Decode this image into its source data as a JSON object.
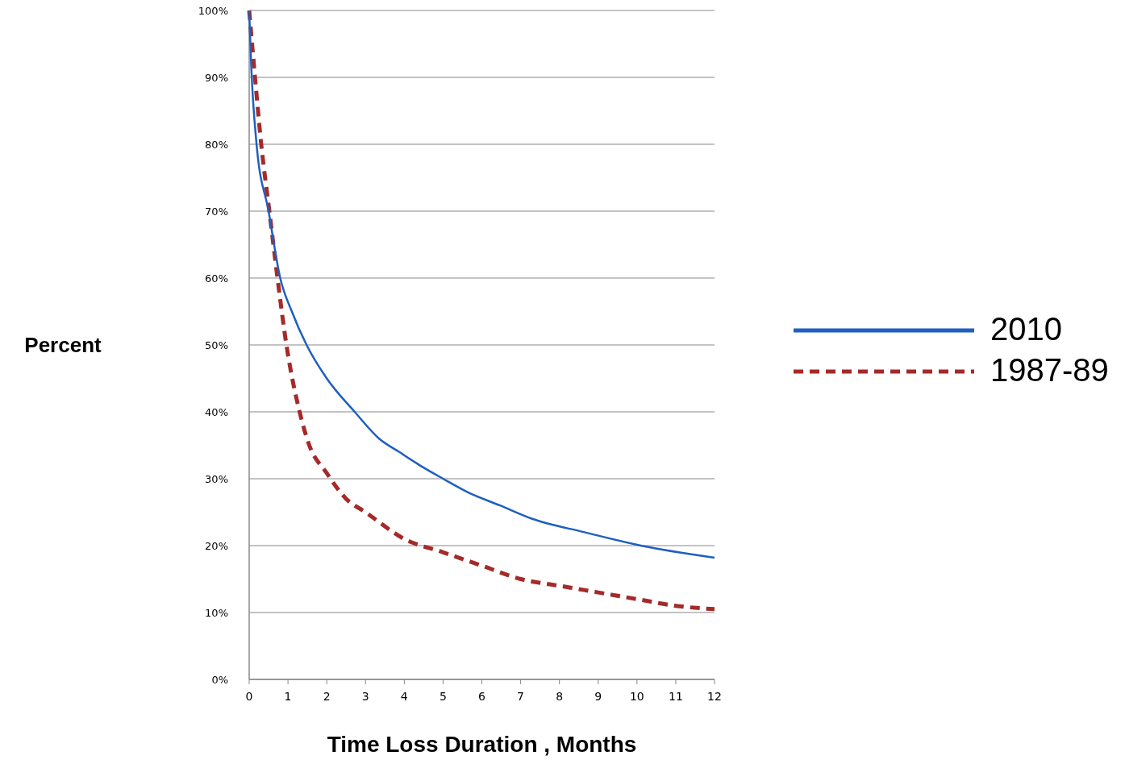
{
  "chart_data": {
    "type": "line",
    "xlabel": "Time Loss Duration , Months",
    "ylabel": "Percent",
    "xlim": [
      0,
      12
    ],
    "xticks": [
      0,
      1,
      2,
      3,
      4,
      5,
      6,
      7,
      8,
      9,
      10,
      11,
      12
    ],
    "ylim": [
      0,
      100
    ],
    "yticks": [
      {
        "value": 0,
        "label": "0%"
      },
      {
        "value": 10,
        "label": "10%"
      },
      {
        "value": 20,
        "label": "20%"
      },
      {
        "value": 30,
        "label": "30%"
      },
      {
        "value": 40,
        "label": "40%"
      },
      {
        "value": 50,
        "label": "50%"
      },
      {
        "value": 60,
        "label": "60%"
      },
      {
        "value": 70,
        "label": "70%"
      },
      {
        "value": 80,
        "label": "80%"
      },
      {
        "value": 90,
        "label": "90%"
      },
      {
        "value": 100,
        "label": "100%"
      }
    ],
    "grid": "y",
    "legend": "right",
    "series": [
      {
        "name": "2010",
        "color": "#1f5fbf",
        "line_style": "solid",
        "x": [
          0,
          0.05,
          0.19,
          0.5,
          0.8,
          1.1,
          1.48,
          2.0,
          2.72,
          3.35,
          3.87,
          4.4,
          5.0,
          5.63,
          6.47,
          7.3,
          8.65,
          10.1,
          12
        ],
        "values": [
          100,
          92,
          80,
          70,
          60,
          55,
          50,
          45,
          40,
          36,
          34,
          32,
          30,
          28,
          26,
          24,
          22,
          20,
          18.2
        ]
      },
      {
        "name": "1987-89",
        "color": "#a52a2a",
        "line_style": "dashed",
        "x": [
          0,
          0.15,
          0.31,
          0.52,
          0.73,
          0.96,
          1.3,
          1.55,
          1.98,
          2.5,
          3.0,
          4.0,
          5.0,
          6.0,
          7.0,
          8.0,
          9.0,
          10.0,
          11.0,
          12
        ],
        "values": [
          100,
          90,
          80,
          70,
          60,
          50,
          40,
          35,
          31,
          27,
          25,
          21,
          19,
          17,
          15,
          14,
          13,
          12,
          11,
          10.5
        ]
      }
    ]
  }
}
